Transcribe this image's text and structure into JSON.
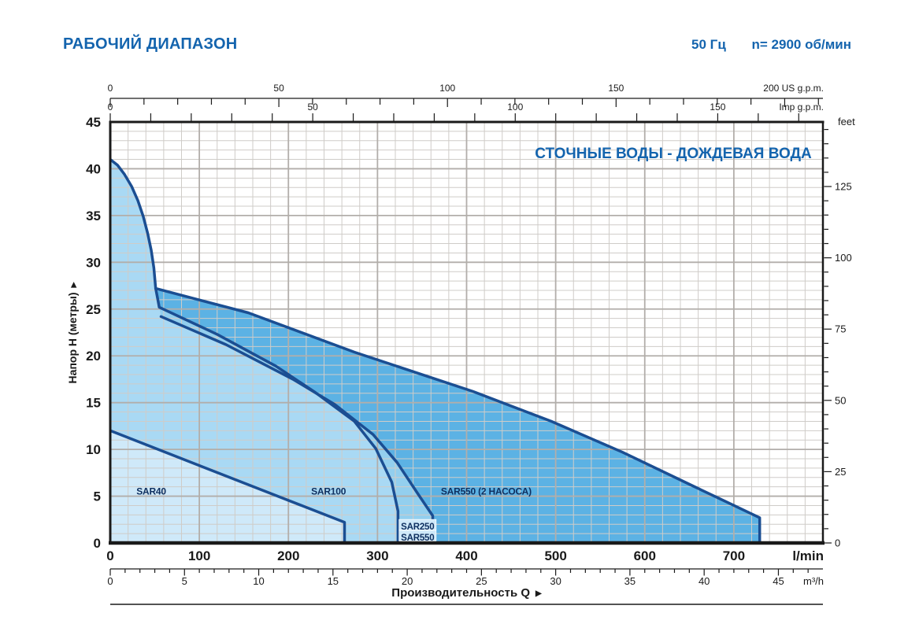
{
  "header": {
    "title": "РАБОЧИЙ ДИАПАЗОН",
    "frequency": "50 Гц",
    "speed": "n= 2900 об/мин"
  },
  "chart_data": {
    "type": "area",
    "title": "СТОЧНЫЕ ВОДЫ - ДОЖДЕВАЯ ВОДА",
    "xlabel": "Производительность Q",
    "ylabel": "Напор H (метры)",
    "xlim_lmin": [
      0,
      800
    ],
    "ylim_m": [
      0,
      45
    ],
    "grid": "on",
    "axes": {
      "top_us_gpm": {
        "unit": "US g.p.m.",
        "ticks": [
          0,
          50,
          100,
          150,
          200
        ],
        "minor_step": 10
      },
      "top_imp_gpm": {
        "unit": "Imp g.p.m.",
        "ticks": [
          0,
          50,
          100,
          150
        ],
        "minor_step": 10
      },
      "left_m": {
        "unit_label": "Напор H (метры)",
        "ticks": [
          45,
          40,
          35,
          30,
          25,
          20,
          15,
          10,
          5,
          0
        ],
        "minor_step": 1
      },
      "right_feet": {
        "unit": "feet",
        "ticks": [
          125,
          100,
          75,
          50,
          25,
          0
        ],
        "minor_step": 5
      },
      "bottom_lmin": {
        "unit": "l/min",
        "ticks": [
          0,
          100,
          200,
          300,
          400,
          500,
          600,
          700
        ]
      },
      "bottom_m3h": {
        "unit": "m³/h",
        "ticks": [
          0,
          5,
          10,
          15,
          20,
          25,
          30,
          35,
          40,
          45
        ],
        "minor_step": 1
      }
    },
    "regions": [
      {
        "id": "sar100",
        "label": "SAR100",
        "color": "#a9d9f4",
        "label_pos": [
          245,
          5.5
        ],
        "boundary": [
          [
            0,
            0
          ],
          [
            0,
            41
          ],
          [
            8,
            40.4
          ],
          [
            16,
            39.4
          ],
          [
            24,
            38.1
          ],
          [
            31,
            36.6
          ],
          [
            37,
            34.9
          ],
          [
            42,
            33.1
          ],
          [
            46,
            31.3
          ],
          [
            49,
            29.4
          ],
          [
            51,
            27.2
          ],
          [
            53,
            26.2
          ],
          [
            55,
            25.2
          ],
          [
            120,
            22.3
          ],
          [
            186,
            18.9
          ],
          [
            230,
            16.1
          ],
          [
            274,
            13
          ],
          [
            298,
            10.1
          ],
          [
            316,
            6.5
          ],
          [
            323,
            3.4
          ],
          [
            323,
            0
          ]
        ]
      },
      {
        "id": "sar550-two-pumps",
        "label": "SAR550 (2 НАСОСА)",
        "color": "#5cb2e4",
        "label_pos": [
          422,
          5.5
        ],
        "boundary": [
          [
            51,
            27.2
          ],
          [
            155,
            24.6
          ],
          [
            274,
            20.4
          ],
          [
            407,
            16.2
          ],
          [
            495,
            13
          ],
          [
            575,
            9.7
          ],
          [
            654,
            6.1
          ],
          [
            729,
            2.7
          ],
          [
            729,
            0
          ],
          [
            323,
            0
          ],
          [
            323,
            3.4
          ],
          [
            316,
            6.5
          ],
          [
            298,
            10.1
          ],
          [
            274,
            13
          ],
          [
            230,
            16.1
          ],
          [
            186,
            18.9
          ],
          [
            120,
            22.3
          ],
          [
            55,
            25.2
          ],
          [
            53,
            26.2
          ]
        ]
      },
      {
        "id": "sar250-sar550",
        "color": "#93cfee",
        "boxed_labels": [
          {
            "text": "SAR250",
            "pos": [
              345,
              1.75
            ]
          },
          {
            "text": "SAR550",
            "pos": [
              345,
              0.6
            ]
          }
        ],
        "boundary": [
          [
            55,
            25.2
          ],
          [
            120,
            22.3
          ],
          [
            186,
            18.9
          ],
          [
            230,
            16.1
          ],
          [
            274,
            13
          ],
          [
            298,
            10.1
          ],
          [
            316,
            6.5
          ],
          [
            323,
            3.4
          ],
          [
            323,
            0
          ],
          [
            362,
            0
          ],
          [
            362,
            2.9
          ],
          [
            345,
            5.3
          ],
          [
            322,
            8.6
          ],
          [
            295,
            11.6
          ],
          [
            252,
            14.8
          ],
          [
            205,
            17.5
          ],
          [
            130,
            21.2
          ],
          [
            57,
            24.2
          ]
        ]
      },
      {
        "id": "sar40",
        "label": "SAR40",
        "color": "#cfe9f9",
        "label_pos": [
          46,
          5.5
        ],
        "boundary": [
          [
            0,
            0
          ],
          [
            0,
            12
          ],
          [
            263,
            2.2
          ],
          [
            263,
            0
          ]
        ]
      }
    ],
    "borders": [
      {
        "id": "envelope-sar100-curve",
        "points": [
          [
            0,
            41
          ],
          [
            8,
            40.4
          ],
          [
            16,
            39.4
          ],
          [
            24,
            38.1
          ],
          [
            31,
            36.6
          ],
          [
            37,
            34.9
          ],
          [
            42,
            33.1
          ],
          [
            46,
            31.3
          ],
          [
            49,
            29.4
          ],
          [
            51,
            27.2
          ],
          [
            53,
            26.2
          ],
          [
            55,
            25.2
          ],
          [
            120,
            22.3
          ],
          [
            186,
            18.9
          ],
          [
            230,
            16.1
          ],
          [
            274,
            13
          ],
          [
            298,
            10.1
          ],
          [
            316,
            6.5
          ],
          [
            323,
            3.4
          ],
          [
            323,
            0
          ]
        ]
      },
      {
        "id": "sar250-sar550-curve",
        "points": [
          [
            57,
            24.2
          ],
          [
            130,
            21.2
          ],
          [
            205,
            17.5
          ],
          [
            252,
            14.8
          ],
          [
            295,
            11.6
          ],
          [
            322,
            8.6
          ],
          [
            345,
            5.3
          ],
          [
            362,
            2.9
          ],
          [
            362,
            0
          ]
        ]
      },
      {
        "id": "two-pump-boundary",
        "points": [
          [
            51,
            27.2
          ],
          [
            155,
            24.6
          ],
          [
            274,
            20.4
          ],
          [
            407,
            16.2
          ],
          [
            495,
            13
          ],
          [
            575,
            9.7
          ],
          [
            654,
            6.1
          ],
          [
            729,
            2.7
          ],
          [
            729,
            0
          ]
        ]
      },
      {
        "id": "sar40-boundary",
        "points": [
          [
            0,
            12
          ],
          [
            263,
            2.2
          ],
          [
            263,
            0
          ]
        ]
      }
    ],
    "colors": {
      "accent_blue": "#1464ae",
      "curve_navy": "#1b4e92",
      "frame_black": "#1a1a1a",
      "grid_minor": "#cfccc8",
      "grid_major": "#b2aeaa",
      "region_label": "#0f3060",
      "boxed_label_bg": "#cfe9f9"
    }
  }
}
